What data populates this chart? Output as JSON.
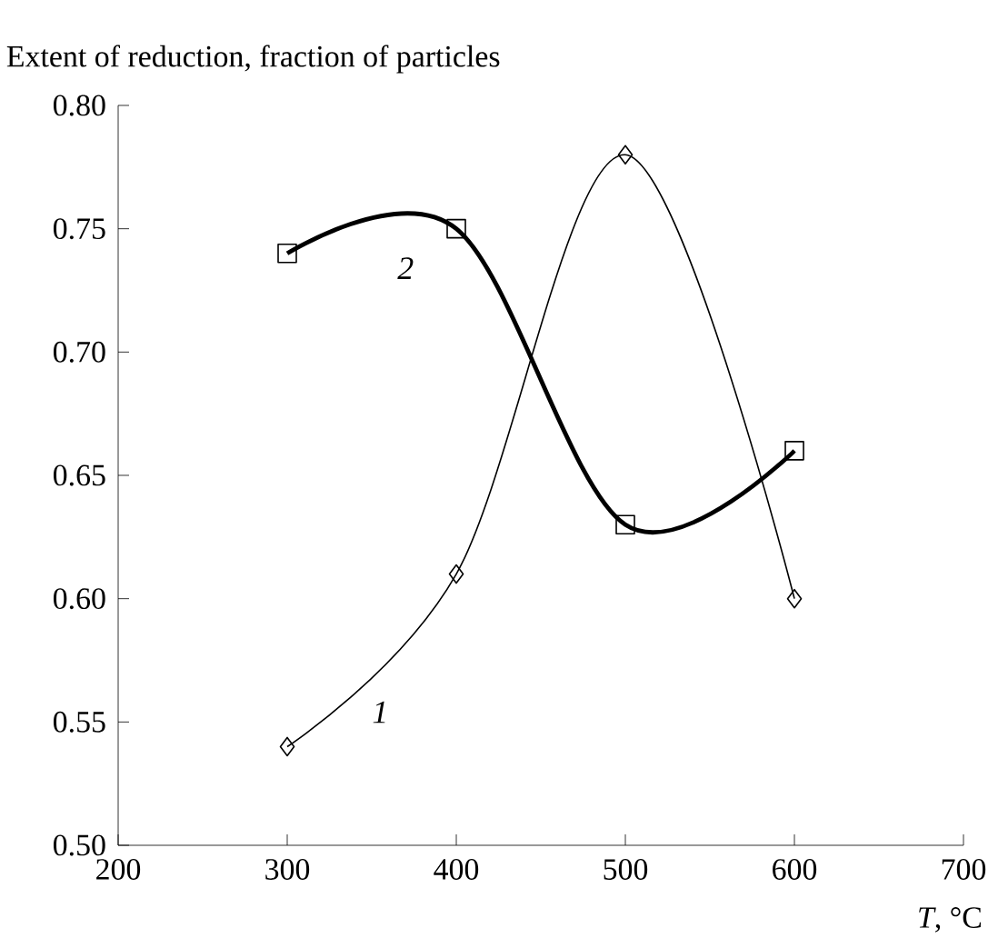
{
  "chart_data": {
    "type": "line",
    "ylabel": "Extent of reduction, fraction of particles",
    "xlabel": "*T*, °C",
    "x": [
      300,
      400,
      500,
      600
    ],
    "series": [
      {
        "name": "1",
        "color": "#000000",
        "marker": "diamond",
        "values": [
          0.54,
          0.61,
          0.78,
          0.6
        ]
      },
      {
        "name": "2",
        "color": "#000000",
        "marker": "square",
        "values": [
          0.74,
          0.75,
          0.63,
          0.66
        ]
      }
    ],
    "xlim": [
      200,
      700
    ],
    "xticks": [
      200,
      300,
      400,
      500,
      600,
      700
    ],
    "ylim": [
      0.5,
      0.8
    ],
    "yticks": [
      {
        "value": 0.5,
        "label": "0.50"
      },
      {
        "value": 0.55,
        "label": "0.55"
      },
      {
        "value": 0.6,
        "label": "0.60"
      },
      {
        "value": 0.65,
        "label": "0.65"
      },
      {
        "value": 0.7,
        "label": "0.70"
      },
      {
        "value": 0.75,
        "label": "0.75"
      },
      {
        "value": 0.8,
        "label": "0.80"
      }
    ],
    "grid": false
  }
}
